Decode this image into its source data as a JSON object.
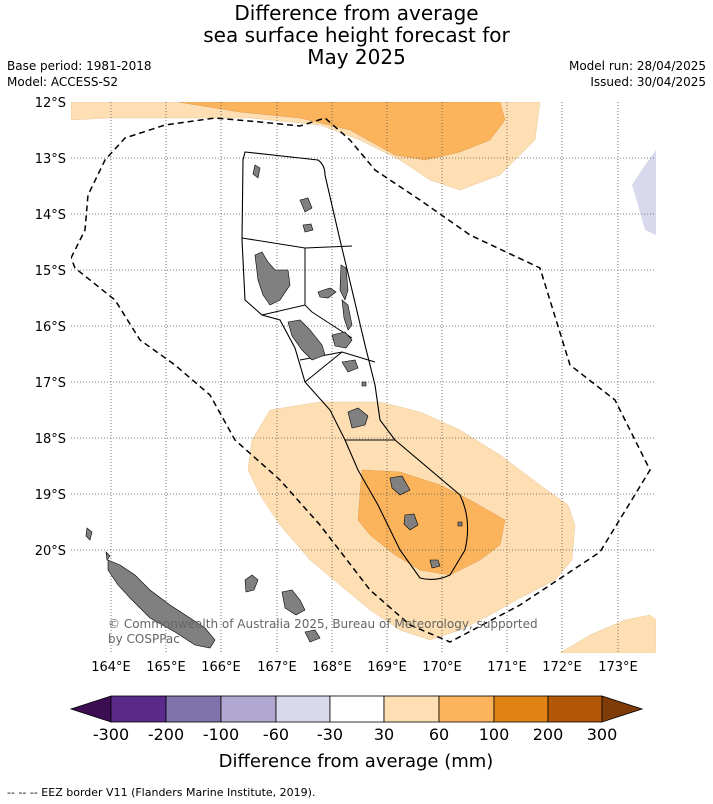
{
  "title": {
    "line1": "Difference from average",
    "line2": "sea surface height forecast for",
    "line3": "May 2025"
  },
  "info": {
    "base_period": "Base period: 1981-2018",
    "model": "Model: ACCESS-S2",
    "model_run": "Model run: 28/04/2025",
    "issued": "Issued: 30/04/2025"
  },
  "map": {
    "lat_labels": [
      "12°S",
      "13°S",
      "14°S",
      "15°S",
      "16°S",
      "17°S",
      "18°S",
      "19°S",
      "20°S"
    ],
    "lon_labels": [
      "164°E",
      "165°E",
      "166°E",
      "167°E",
      "168°E",
      "169°E",
      "170°E",
      "171°E",
      "172°E",
      "173°E"
    ],
    "copyright_line1": "© Commonwealth of Australia 2025, Bureau of Meteorology, supported",
    "copyright_line2": "by COSPPac",
    "land_color": "#808080",
    "colors": {
      "c30_60": "#fddfb3",
      "c60_100": "#fbb45c",
      "c_neg60_30": "#d8d9ec"
    }
  },
  "colorbar": {
    "title": "Difference from average (mm)",
    "tick_labels": [
      "-300",
      "-200",
      "-100",
      "-60",
      "-30",
      "30",
      "60",
      "100",
      "200",
      "300"
    ],
    "colors": [
      "#3b0e53",
      "#5a2a8a",
      "#8073ac",
      "#b1a9d1",
      "#d8d9ec",
      "#ffffff",
      "#fddfb3",
      "#fbb45c",
      "#e08214",
      "#b35806",
      "#7f3b08"
    ]
  },
  "footer": "--  --  -- EEZ border V11 (Flanders Marine Institute, 2019)."
}
